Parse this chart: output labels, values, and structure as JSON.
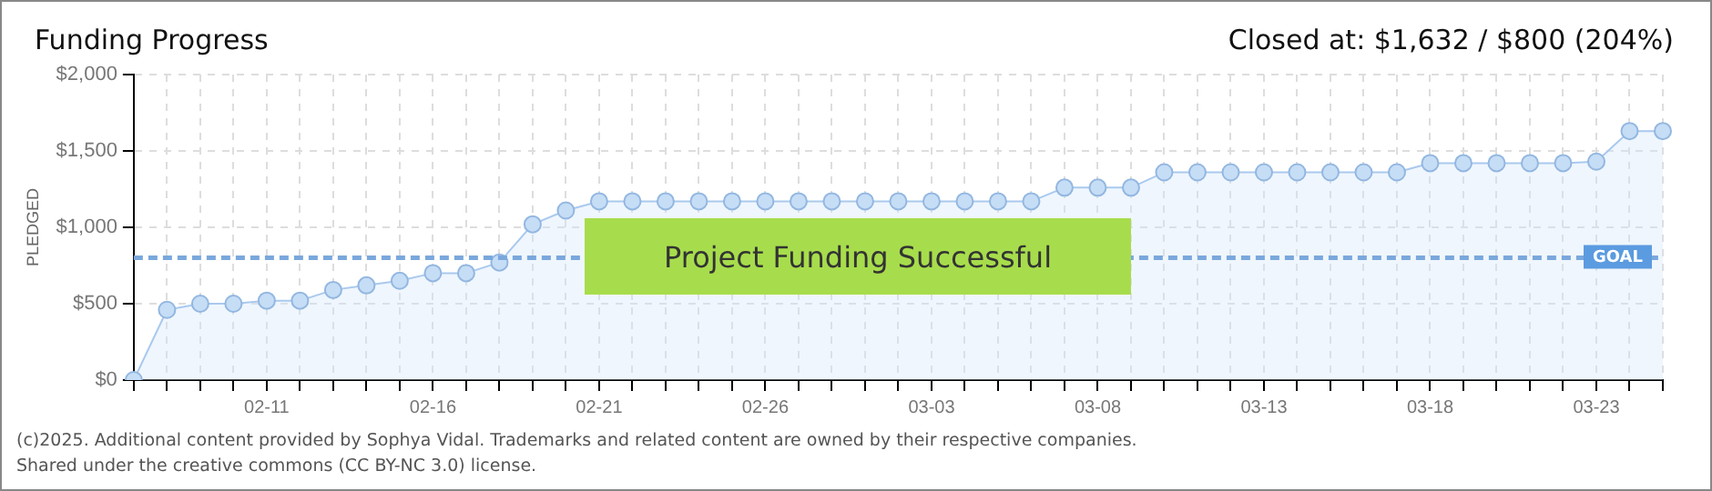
{
  "chart_data": {
    "type": "area",
    "title": "Funding Progress",
    "subtitle": "Closed at: $1,632 / $800 (204%)",
    "ylabel": "PLEDGED",
    "categories": [
      null,
      null,
      null,
      null,
      "02-11",
      null,
      null,
      null,
      null,
      "02-16",
      null,
      null,
      null,
      null,
      "02-21",
      null,
      null,
      null,
      null,
      "02-26",
      null,
      null,
      null,
      null,
      "03-03",
      null,
      null,
      null,
      null,
      "03-08",
      null,
      null,
      null,
      null,
      "03-13",
      null,
      null,
      null,
      null,
      "03-18",
      null,
      null,
      null,
      null,
      "03-23",
      null,
      null
    ],
    "series": [
      {
        "color": "#a9c9ee",
        "values": [
          0,
          460,
          500,
          500,
          520,
          520,
          590,
          620,
          650,
          700,
          700,
          770,
          1020,
          1110,
          1170,
          1170,
          1170,
          1170,
          1170,
          1170,
          1170,
          1170,
          1170,
          1170,
          1170,
          1170,
          1170,
          1170,
          1260,
          1260,
          1260,
          1360,
          1360,
          1360,
          1360,
          1360,
          1360,
          1360,
          1360,
          1420,
          1420,
          1420,
          1420,
          1420,
          1430,
          1630,
          1630
        ]
      }
    ],
    "ylim": [
      0,
      2000
    ],
    "yticks": [
      {
        "value": 0,
        "label": "$0"
      },
      {
        "value": 500,
        "label": "$500"
      },
      {
        "value": 1000,
        "label": "$1,000"
      },
      {
        "value": 1500,
        "label": "$1,500"
      },
      {
        "value": 2000,
        "label": "$2,000"
      }
    ],
    "ref_lines": [
      {
        "axis": "y",
        "value": 800,
        "label": "GOAL",
        "color": "#7aa8dc",
        "line_style": "dashed"
      }
    ],
    "annotations": [
      "Project Funding Successful",
      "(c)2025. Additional content provided by Sophya Vidal. Trademarks and related content are owned by their respective companies.",
      "Shared under the creative commons (CC BY-NC 3.0) license."
    ],
    "grid": true,
    "marker": "circle",
    "legend": false
  }
}
